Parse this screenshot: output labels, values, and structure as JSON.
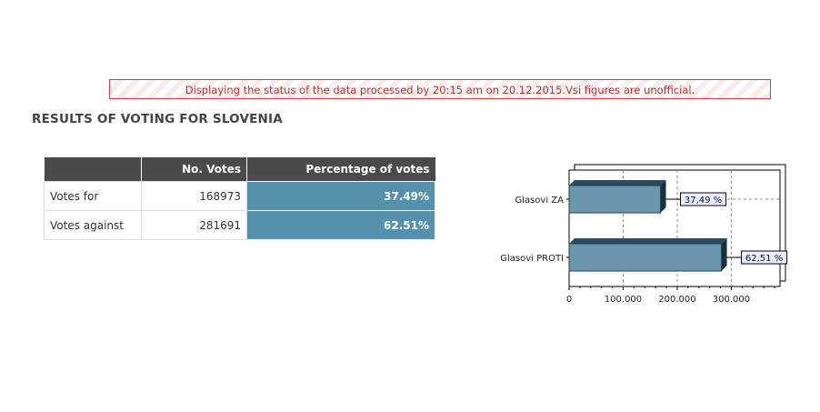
{
  "notice": {
    "text": "Displaying the status of the data processed by 20:15 am on 20.12.2015.Vsi figures are unofficial."
  },
  "page_title": "RESULTS OF VOTING FOR SLOVENIA",
  "table": {
    "headers": [
      "",
      "No. Votes",
      "Percentage of votes"
    ],
    "rows": [
      {
        "label": "Votes for",
        "votes": "168973",
        "percent": "37.49%"
      },
      {
        "label": "Votes against",
        "votes": "281691",
        "percent": "62.51%"
      }
    ]
  },
  "chart_data": {
    "type": "bar",
    "orientation": "horizontal",
    "categories": [
      "Glasovi ZA",
      "Glasovi PROTI"
    ],
    "values": [
      168973,
      281691
    ],
    "data_labels": [
      "37,49 %",
      "62,51 %"
    ],
    "x_ticks": [
      "0",
      "100.000",
      "200.000",
      "300.000"
    ],
    "xlim": [
      0,
      390000
    ],
    "grid": true,
    "colors": {
      "bar": "#6a96ae",
      "bar_top": "#2e4a5c",
      "bar_side": "#1c2f3b"
    }
  }
}
